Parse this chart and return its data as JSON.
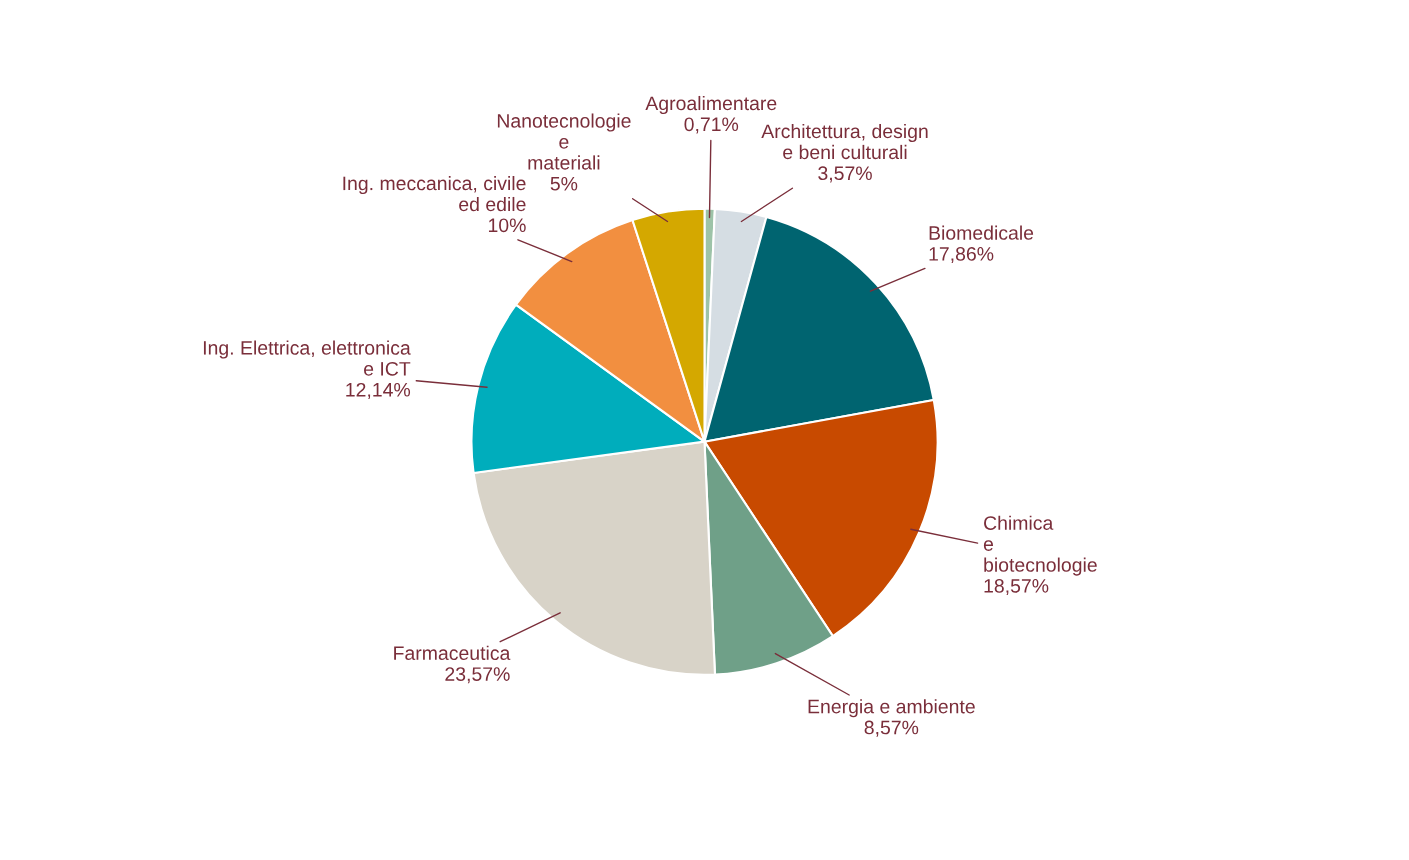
{
  "chart_data": {
    "type": "pie",
    "categories": [
      "Agroalimentare",
      "Architettura, design\ne beni culturali",
      "Biomedicale",
      "Chimica\ne\nbiotecnologie",
      "Energia e ambiente",
      "Farmaceutica",
      "Ing. Elettrica, elettronica\ne ICT",
      "Ing. meccanica, civile\ned edile",
      "Nanotecnologie\ne\nmateriali"
    ],
    "values": [
      0.71,
      3.57,
      17.86,
      18.57,
      8.57,
      23.57,
      12.14,
      10,
      5
    ],
    "value_labels": [
      "0,71%",
      "3,57%",
      "17,86%",
      "18,57%",
      "8,57%",
      "23,57%",
      "12,14%",
      "10%",
      "5%"
    ],
    "colors": [
      "#9dc3a8",
      "#d5dde3",
      "#006470",
      "#c84a00",
      "#6fa088",
      "#d8d3c8",
      "#00adbc",
      "#f28f40",
      "#d4a800"
    ],
    "legend": false
  }
}
